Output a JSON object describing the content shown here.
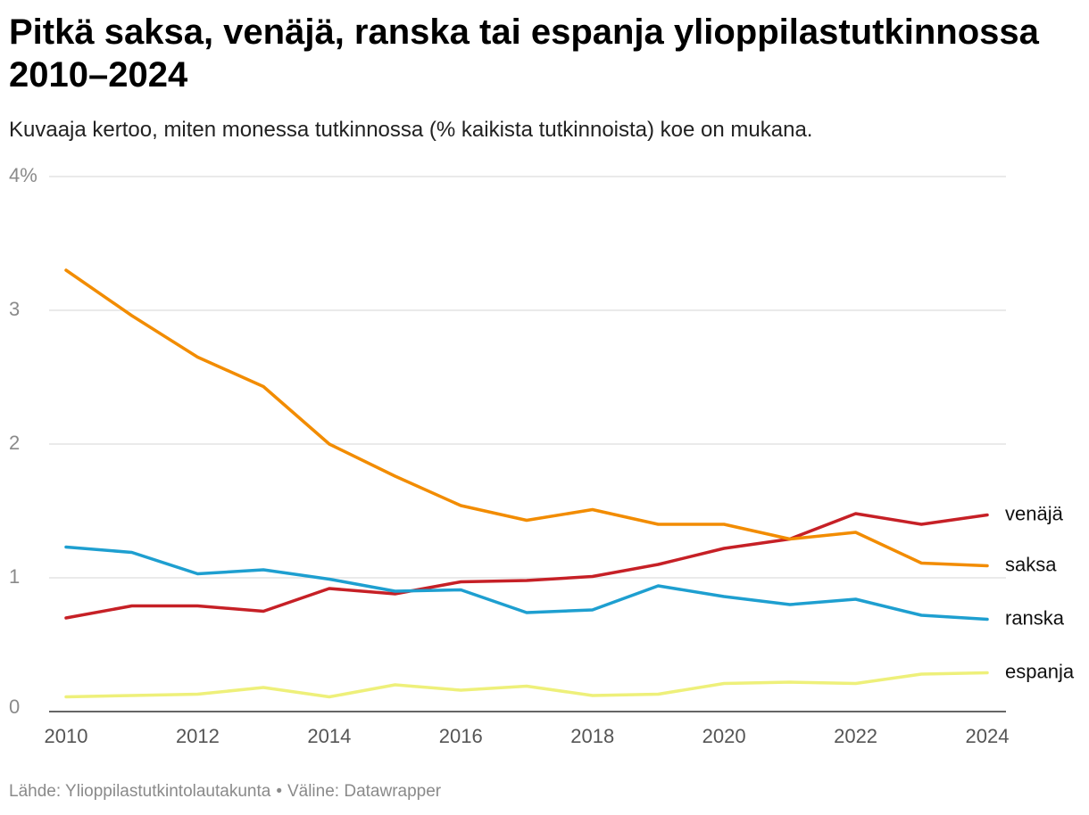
{
  "title": "Pitkä saksa, venäjä, ranska tai espanja ylioppilastutkinnossa 2010–2024",
  "subtitle": "Kuvaaja kertoo, miten monessa tutkinnossa (% kaikista tutkinnoista) koe on mukana.",
  "footer": {
    "source": "Lähde: Ylioppilastutkintolautakunta",
    "separator": "•",
    "tool": "Väline: Datawrapper"
  },
  "chart_data": {
    "type": "line",
    "title": "Pitkä saksa, venäjä, ranska tai espanja ylioppilastutkinnossa 2010–2024",
    "subtitle": "Kuvaaja kertoo, miten monessa tutkinnossa (% kaikista tutkinnoista) koe on mukana.",
    "x": [
      2010,
      2011,
      2012,
      2013,
      2014,
      2015,
      2016,
      2017,
      2018,
      2019,
      2020,
      2021,
      2022,
      2023,
      2024
    ],
    "xticks": [
      "2010",
      "2012",
      "2014",
      "2016",
      "2018",
      "2020",
      "2022",
      "2024"
    ],
    "xtick_values": [
      2010,
      2012,
      2014,
      2016,
      2018,
      2020,
      2022,
      2024
    ],
    "yticks": [
      "0",
      "1",
      "2",
      "3",
      "4%"
    ],
    "ytick_values": [
      0,
      1,
      2,
      3,
      4
    ],
    "ylim": [
      0,
      4
    ],
    "xlim": [
      2010,
      2024
    ],
    "grid": true,
    "legend": "direct labels at line ends (right)",
    "series": [
      {
        "name": "venäjä",
        "color": "#c62026",
        "values": [
          0.7,
          0.79,
          0.79,
          0.75,
          0.92,
          0.88,
          0.97,
          0.98,
          1.01,
          1.1,
          1.22,
          1.29,
          1.48,
          1.4,
          1.47
        ]
      },
      {
        "name": "saksa",
        "color": "#f28c00",
        "values": [
          3.3,
          2.96,
          2.65,
          2.43,
          2.0,
          1.76,
          1.54,
          1.43,
          1.51,
          1.4,
          1.4,
          1.29,
          1.34,
          1.11,
          1.09
        ]
      },
      {
        "name": "ranska",
        "color": "#1e9fd0",
        "values": [
          1.23,
          1.19,
          1.03,
          1.06,
          0.99,
          0.9,
          0.91,
          0.74,
          0.76,
          0.94,
          0.86,
          0.8,
          0.84,
          0.72,
          0.69
        ]
      },
      {
        "name": "espanja",
        "color": "#eef07a",
        "values": [
          0.11,
          0.12,
          0.13,
          0.18,
          0.11,
          0.2,
          0.16,
          0.19,
          0.12,
          0.13,
          0.21,
          0.22,
          0.21,
          0.28,
          0.29
        ]
      }
    ]
  }
}
